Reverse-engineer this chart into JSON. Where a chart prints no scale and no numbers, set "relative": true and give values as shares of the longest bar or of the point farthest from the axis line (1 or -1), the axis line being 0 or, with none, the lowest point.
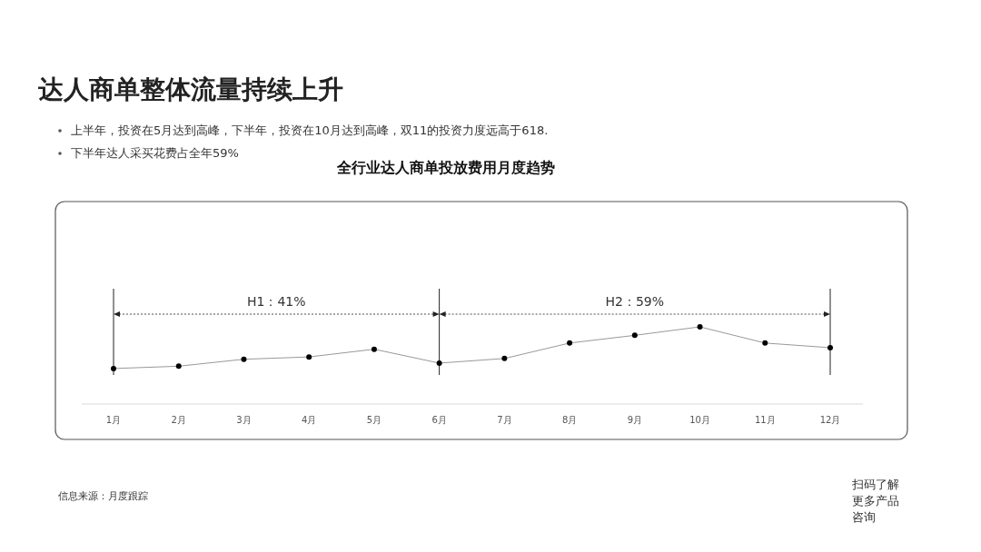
{
  "chart_data": {
    "type": "line",
    "title": "全行业达人商单投放费用月度趋势",
    "annotations": [
      "达人商单整体流量持续上升",
      "上半年，投资在5月达到高峰，下半年，投资在10月达到高峰，双11的投资力度远高于618.",
      "下半年达人采买花费占全年59%",
      "信息来源：月度跟踪",
      "扫码了解更多产品咨询",
      "H1：41%",
      "H2：59%"
    ],
    "categories": [
      "1月",
      "2月",
      "3月",
      "4月",
      "5月",
      "6月",
      "7月",
      "8月",
      "9月",
      "10月",
      "11月",
      "12月"
    ],
    "relative": true,
    "series": [
      {
        "color": "#000000",
        "values": [
          0.46,
          0.49,
          0.58,
          0.61,
          0.71,
          0.53,
          0.59,
          0.79,
          0.89,
          1,
          0.79,
          0.73
        ]
      }
    ],
    "ref_lines": [
      {
        "axis": "x",
        "value": "1月",
        "color": "#222222"
      },
      {
        "axis": "x",
        "value": "6月",
        "color": "#222222"
      },
      {
        "axis": "x",
        "value": "12月",
        "color": "#222222"
      }
    ],
    "marker": "circle"
  }
}
